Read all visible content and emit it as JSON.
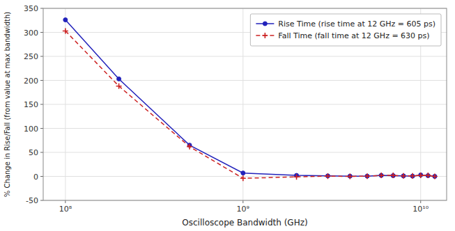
{
  "chart_data": {
    "type": "line",
    "x_label": "Oscilloscope Bandwidth (GHz)",
    "y_label": "% Change in Rise/Fall (from value at max bandwidth)",
    "x": [
      0.1,
      0.2,
      0.5,
      1.0,
      2.0,
      3.0,
      4.0,
      5.0,
      6.0,
      7.0,
      8.0,
      9.0,
      10.0,
      11.0,
      12.0
    ],
    "series": [
      {
        "name": "Rise Time (rise time at 12 GHz = 605 ps)",
        "color": "#2222bb",
        "marker": "circle",
        "line_style": "solid",
        "values": [
          326,
          203,
          65,
          7,
          2,
          1,
          0.5,
          0.5,
          2,
          1.5,
          1,
          0.5,
          3,
          1.5,
          0
        ]
      },
      {
        "name": "Fall Time (fall time at 12 GHz = 630 ps)",
        "color": "#cc2222",
        "marker": "plus",
        "line_style": "dashed",
        "values": [
          303,
          188,
          62,
          -4,
          -1,
          0.5,
          0,
          0.5,
          2,
          2,
          1,
          1,
          2,
          2,
          0
        ]
      }
    ],
    "log": "x",
    "xlim": [
      0.075,
      14.0
    ],
    "xticks": [
      {
        "value": 0.1,
        "label": "10⁸"
      },
      {
        "value": 1.0,
        "label": "10⁹"
      },
      {
        "value": 10.0,
        "label": "10¹⁰"
      }
    ],
    "ylim": [
      -50,
      350
    ],
    "yticks": [
      -50,
      0,
      50,
      100,
      150,
      200,
      250,
      300,
      350
    ],
    "grid": true,
    "legend": "upper right"
  }
}
